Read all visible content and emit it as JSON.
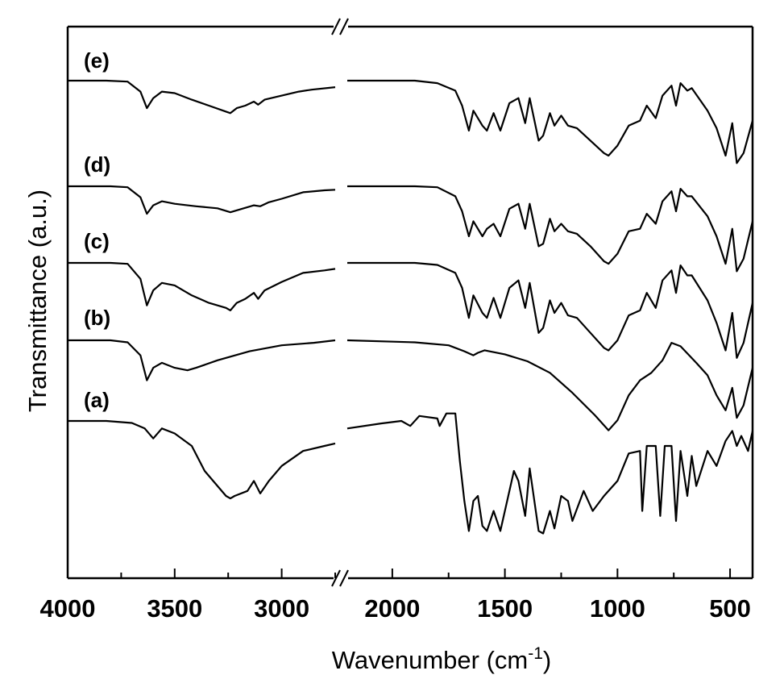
{
  "chart_data": {
    "type": "line",
    "title": "",
    "xlabel": "Wavenumber (cm",
    "xlabel_sup": "-1",
    "xlabel_close": ")",
    "ylabel": "Transmittance (a.u.)",
    "x_axis_break": true,
    "xlim_left_segment": [
      4000,
      2750
    ],
    "xlim_right_segment": [
      2200,
      400
    ],
    "x_reversed": true,
    "x_ticks": [
      {
        "value": 4000,
        "label": "4000"
      },
      {
        "value": 3500,
        "label": "3500"
      },
      {
        "value": 3000,
        "label": "3000"
      },
      {
        "value": 2000,
        "label": "2000"
      },
      {
        "value": 1500,
        "label": "1500"
      },
      {
        "value": 1000,
        "label": "1000"
      },
      {
        "value": 500,
        "label": "500"
      }
    ],
    "y_ticks_shown": false,
    "grid": false,
    "legend": "none",
    "series": [
      {
        "name": "(e)",
        "points": [
          [
            4000,
            0.0
          ],
          [
            3820,
            0.0
          ],
          [
            3720,
            0.02
          ],
          [
            3660,
            0.22
          ],
          [
            3630,
            0.55
          ],
          [
            3600,
            0.35
          ],
          [
            3560,
            0.22
          ],
          [
            3500,
            0.25
          ],
          [
            3420,
            0.38
          ],
          [
            3340,
            0.5
          ],
          [
            3260,
            0.62
          ],
          [
            3240,
            0.65
          ],
          [
            3210,
            0.55
          ],
          [
            3170,
            0.5
          ],
          [
            3130,
            0.42
          ],
          [
            3110,
            0.48
          ],
          [
            3080,
            0.38
          ],
          [
            3000,
            0.3
          ],
          [
            2920,
            0.22
          ],
          [
            2860,
            0.18
          ],
          [
            2750,
            0.13
          ],
          [
            2200,
            0.0
          ],
          [
            1900,
            0.0
          ],
          [
            1800,
            0.05
          ],
          [
            1720,
            0.2
          ],
          [
            1690,
            0.5
          ],
          [
            1660,
            1.0
          ],
          [
            1640,
            0.6
          ],
          [
            1600,
            0.9
          ],
          [
            1580,
            1.0
          ],
          [
            1550,
            0.65
          ],
          [
            1520,
            1.0
          ],
          [
            1480,
            0.45
          ],
          [
            1440,
            0.35
          ],
          [
            1410,
            0.85
          ],
          [
            1390,
            0.35
          ],
          [
            1350,
            1.2
          ],
          [
            1330,
            1.1
          ],
          [
            1300,
            0.65
          ],
          [
            1280,
            0.9
          ],
          [
            1250,
            0.7
          ],
          [
            1220,
            0.9
          ],
          [
            1180,
            0.95
          ],
          [
            1120,
            1.2
          ],
          [
            1060,
            1.45
          ],
          [
            1040,
            1.5
          ],
          [
            1000,
            1.3
          ],
          [
            950,
            0.9
          ],
          [
            900,
            0.8
          ],
          [
            870,
            0.5
          ],
          [
            830,
            0.75
          ],
          [
            800,
            0.3
          ],
          [
            760,
            0.1
          ],
          [
            740,
            0.5
          ],
          [
            720,
            0.05
          ],
          [
            690,
            0.2
          ],
          [
            670,
            0.15
          ],
          [
            600,
            0.6
          ],
          [
            560,
            0.95
          ],
          [
            520,
            1.5
          ],
          [
            490,
            0.85
          ],
          [
            470,
            1.65
          ],
          [
            440,
            1.45
          ],
          [
            400,
            0.8
          ]
        ]
      },
      {
        "name": "(d)",
        "points": [
          [
            4000,
            0.0
          ],
          [
            3800,
            0.0
          ],
          [
            3720,
            0.02
          ],
          [
            3660,
            0.22
          ],
          [
            3630,
            0.55
          ],
          [
            3600,
            0.38
          ],
          [
            3560,
            0.3
          ],
          [
            3500,
            0.35
          ],
          [
            3400,
            0.4
          ],
          [
            3300,
            0.44
          ],
          [
            3240,
            0.52
          ],
          [
            3200,
            0.47
          ],
          [
            3130,
            0.38
          ],
          [
            3100,
            0.4
          ],
          [
            3060,
            0.32
          ],
          [
            3000,
            0.25
          ],
          [
            2900,
            0.12
          ],
          [
            2800,
            0.08
          ],
          [
            2750,
            0.07
          ],
          [
            2200,
            0.0
          ],
          [
            1900,
            0.0
          ],
          [
            1800,
            0.02
          ],
          [
            1720,
            0.2
          ],
          [
            1690,
            0.5
          ],
          [
            1660,
            1.0
          ],
          [
            1640,
            0.7
          ],
          [
            1600,
            1.0
          ],
          [
            1580,
            0.85
          ],
          [
            1550,
            0.75
          ],
          [
            1520,
            1.0
          ],
          [
            1480,
            0.45
          ],
          [
            1440,
            0.35
          ],
          [
            1410,
            0.85
          ],
          [
            1390,
            0.35
          ],
          [
            1350,
            1.2
          ],
          [
            1330,
            1.15
          ],
          [
            1300,
            0.65
          ],
          [
            1280,
            0.9
          ],
          [
            1250,
            0.75
          ],
          [
            1220,
            0.9
          ],
          [
            1180,
            0.95
          ],
          [
            1120,
            1.2
          ],
          [
            1060,
            1.5
          ],
          [
            1040,
            1.55
          ],
          [
            1000,
            1.35
          ],
          [
            950,
            0.9
          ],
          [
            900,
            0.85
          ],
          [
            870,
            0.55
          ],
          [
            830,
            0.75
          ],
          [
            800,
            0.3
          ],
          [
            760,
            0.1
          ],
          [
            740,
            0.5
          ],
          [
            720,
            0.05
          ],
          [
            690,
            0.2
          ],
          [
            670,
            0.2
          ],
          [
            600,
            0.6
          ],
          [
            560,
            1.0
          ],
          [
            520,
            1.55
          ],
          [
            490,
            0.85
          ],
          [
            470,
            1.7
          ],
          [
            440,
            1.45
          ],
          [
            400,
            0.7
          ]
        ]
      },
      {
        "name": "(c)",
        "points": [
          [
            4000,
            0.0
          ],
          [
            3800,
            0.0
          ],
          [
            3720,
            0.02
          ],
          [
            3660,
            0.32
          ],
          [
            3630,
            0.85
          ],
          [
            3600,
            0.55
          ],
          [
            3560,
            0.4
          ],
          [
            3500,
            0.45
          ],
          [
            3420,
            0.65
          ],
          [
            3340,
            0.8
          ],
          [
            3260,
            0.9
          ],
          [
            3240,
            0.95
          ],
          [
            3210,
            0.8
          ],
          [
            3170,
            0.72
          ],
          [
            3130,
            0.6
          ],
          [
            3110,
            0.72
          ],
          [
            3080,
            0.55
          ],
          [
            3000,
            0.38
          ],
          [
            2900,
            0.2
          ],
          [
            2800,
            0.15
          ],
          [
            2750,
            0.12
          ],
          [
            2200,
            0.0
          ],
          [
            1900,
            0.0
          ],
          [
            1800,
            0.04
          ],
          [
            1720,
            0.2
          ],
          [
            1690,
            0.5
          ],
          [
            1660,
            1.1
          ],
          [
            1640,
            0.65
          ],
          [
            1600,
            1.0
          ],
          [
            1580,
            1.1
          ],
          [
            1550,
            0.7
          ],
          [
            1520,
            1.1
          ],
          [
            1480,
            0.5
          ],
          [
            1440,
            0.35
          ],
          [
            1410,
            0.9
          ],
          [
            1390,
            0.4
          ],
          [
            1350,
            1.4
          ],
          [
            1330,
            1.3
          ],
          [
            1300,
            0.75
          ],
          [
            1280,
            1.0
          ],
          [
            1250,
            0.8
          ],
          [
            1220,
            1.05
          ],
          [
            1180,
            1.1
          ],
          [
            1120,
            1.4
          ],
          [
            1060,
            1.7
          ],
          [
            1040,
            1.75
          ],
          [
            1000,
            1.55
          ],
          [
            950,
            1.05
          ],
          [
            900,
            0.95
          ],
          [
            870,
            0.6
          ],
          [
            830,
            0.9
          ],
          [
            800,
            0.35
          ],
          [
            760,
            0.15
          ],
          [
            740,
            0.6
          ],
          [
            720,
            0.05
          ],
          [
            690,
            0.25
          ],
          [
            670,
            0.25
          ],
          [
            600,
            0.75
          ],
          [
            560,
            1.2
          ],
          [
            520,
            1.75
          ],
          [
            490,
            1.0
          ],
          [
            470,
            1.9
          ],
          [
            440,
            1.6
          ],
          [
            400,
            0.8
          ]
        ]
      },
      {
        "name": "(b)",
        "points": [
          [
            4000,
            0.0
          ],
          [
            3800,
            0.0
          ],
          [
            3720,
            0.04
          ],
          [
            3660,
            0.3
          ],
          [
            3630,
            0.8
          ],
          [
            3600,
            0.55
          ],
          [
            3560,
            0.45
          ],
          [
            3500,
            0.55
          ],
          [
            3440,
            0.6
          ],
          [
            3400,
            0.55
          ],
          [
            3300,
            0.4
          ],
          [
            3150,
            0.22
          ],
          [
            3000,
            0.1
          ],
          [
            2850,
            0.05
          ],
          [
            2750,
            0.0
          ],
          [
            2200,
            0.0
          ],
          [
            1900,
            0.04
          ],
          [
            1750,
            0.1
          ],
          [
            1680,
            0.22
          ],
          [
            1640,
            0.3
          ],
          [
            1620,
            0.25
          ],
          [
            1590,
            0.2
          ],
          [
            1500,
            0.28
          ],
          [
            1400,
            0.42
          ],
          [
            1300,
            0.65
          ],
          [
            1200,
            1.05
          ],
          [
            1100,
            1.5
          ],
          [
            1040,
            1.8
          ],
          [
            1000,
            1.6
          ],
          [
            950,
            1.1
          ],
          [
            900,
            0.8
          ],
          [
            850,
            0.65
          ],
          [
            800,
            0.4
          ],
          [
            760,
            0.05
          ],
          [
            720,
            0.12
          ],
          [
            650,
            0.45
          ],
          [
            600,
            0.7
          ],
          [
            560,
            1.1
          ],
          [
            520,
            1.4
          ],
          [
            490,
            0.95
          ],
          [
            470,
            1.55
          ],
          [
            440,
            1.3
          ],
          [
            400,
            0.55
          ]
        ]
      },
      {
        "name": "(a)",
        "points": [
          [
            4000,
            0.0
          ],
          [
            3820,
            0.0
          ],
          [
            3700,
            0.04
          ],
          [
            3640,
            0.15
          ],
          [
            3600,
            0.35
          ],
          [
            3560,
            0.15
          ],
          [
            3500,
            0.25
          ],
          [
            3420,
            0.5
          ],
          [
            3360,
            1.0
          ],
          [
            3300,
            1.3
          ],
          [
            3260,
            1.5
          ],
          [
            3240,
            1.55
          ],
          [
            3220,
            1.5
          ],
          [
            3160,
            1.4
          ],
          [
            3130,
            1.2
          ],
          [
            3100,
            1.45
          ],
          [
            3060,
            1.2
          ],
          [
            3000,
            0.9
          ],
          [
            2900,
            0.6
          ],
          [
            2800,
            0.5
          ],
          [
            2750,
            0.45
          ],
          [
            2200,
            0.15
          ],
          [
            2050,
            0.05
          ],
          [
            1960,
            0.0
          ],
          [
            1920,
            0.1
          ],
          [
            1880,
            -0.1
          ],
          [
            1800,
            -0.05
          ],
          [
            1790,
            0.1
          ],
          [
            1760,
            -0.15
          ],
          [
            1720,
            -0.15
          ],
          [
            1700,
            0.8
          ],
          [
            1680,
            1.6
          ],
          [
            1660,
            2.2
          ],
          [
            1640,
            1.6
          ],
          [
            1620,
            1.5
          ],
          [
            1600,
            2.1
          ],
          [
            1580,
            2.2
          ],
          [
            1550,
            1.8
          ],
          [
            1520,
            2.2
          ],
          [
            1490,
            1.6
          ],
          [
            1460,
            1.0
          ],
          [
            1440,
            1.2
          ],
          [
            1410,
            1.9
          ],
          [
            1390,
            0.95
          ],
          [
            1350,
            2.2
          ],
          [
            1330,
            2.25
          ],
          [
            1300,
            1.8
          ],
          [
            1280,
            2.15
          ],
          [
            1250,
            1.5
          ],
          [
            1220,
            1.6
          ],
          [
            1200,
            2.0
          ],
          [
            1150,
            1.4
          ],
          [
            1110,
            1.8
          ],
          [
            1060,
            1.5
          ],
          [
            1000,
            1.2
          ],
          [
            950,
            0.65
          ],
          [
            900,
            0.6
          ],
          [
            890,
            1.8
          ],
          [
            870,
            0.5
          ],
          [
            830,
            0.5
          ],
          [
            810,
            1.9
          ],
          [
            790,
            0.5
          ],
          [
            760,
            0.5
          ],
          [
            740,
            2.0
          ],
          [
            720,
            0.6
          ],
          [
            690,
            1.5
          ],
          [
            670,
            0.7
          ],
          [
            650,
            1.3
          ],
          [
            600,
            0.6
          ],
          [
            560,
            0.9
          ],
          [
            520,
            0.4
          ],
          [
            490,
            0.2
          ],
          [
            470,
            0.5
          ],
          [
            450,
            0.3
          ],
          [
            420,
            0.6
          ],
          [
            400,
            0.2
          ]
        ]
      }
    ]
  }
}
